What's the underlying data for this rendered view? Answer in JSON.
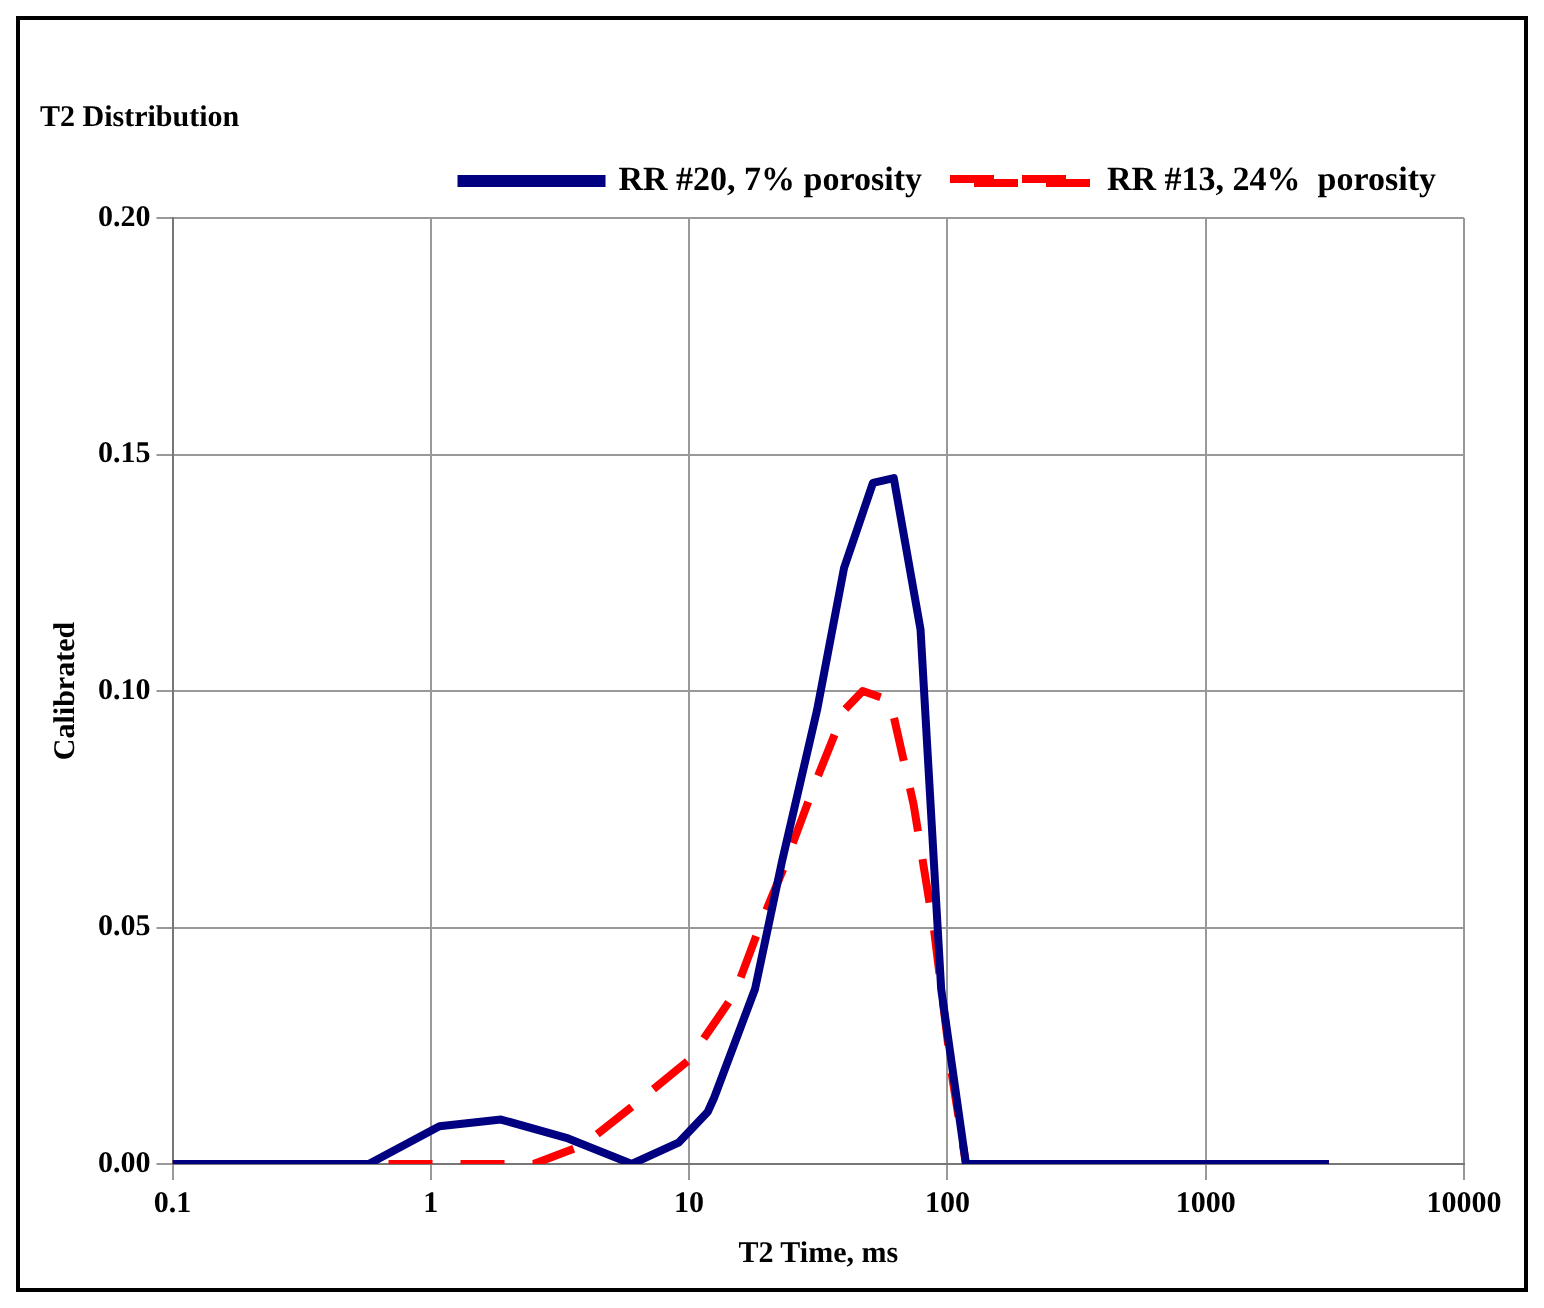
{
  "chart_data": {
    "type": "line",
    "title": "T2 Distribution",
    "xlabel": "T2 Time, ms",
    "ylabel": "Calibrated",
    "log": "x",
    "xlim": [
      0.1,
      10000
    ],
    "xticks": [
      0.1,
      1,
      10,
      100,
      1000,
      10000
    ],
    "ylim": [
      0,
      0.2
    ],
    "yticks": [
      {
        "value": 0,
        "label": "0.00"
      },
      0.05,
      {
        "value": 0.1,
        "label": "0.10"
      },
      0.15,
      {
        "value": 0.2,
        "label": "0.20"
      }
    ],
    "grid": true,
    "legend": "top right",
    "marker": "none",
    "series": [
      {
        "name": "RR #20, 7% porosity",
        "color": "#000080",
        "line_style": "solid",
        "x": [
          0.1,
          0.575,
          1.08,
          1.87,
          3.4,
          6,
          9.1,
          11.8,
          12.5,
          18,
          22.9,
          31.3,
          39.8,
          51.5,
          62,
          78.7,
          94.6,
          118,
          3000
        ],
        "values": [
          0,
          0,
          0.008,
          0.0094,
          0.0054,
          0,
          0.0045,
          0.011,
          0.014,
          0.037,
          0.064,
          0.096,
          0.126,
          0.144,
          0.145,
          0.113,
          0.037,
          0,
          0
        ]
      },
      {
        "name": "RR #13, 24%  porosity",
        "color": "#ff0000",
        "line_style": "dashed",
        "x": [
          0.1,
          2.5,
          3.9,
          6.3,
          10,
          15,
          19,
          23,
          31,
          40,
          47,
          60,
          74,
          89,
          104,
          118,
          3000
        ],
        "values": [
          0,
          0,
          0.004,
          0.013,
          0.022,
          0.036,
          0.051,
          0.062,
          0.081,
          0.096,
          0.1,
          0.098,
          0.076,
          0.049,
          0.019,
          0,
          0
        ]
      }
    ]
  }
}
